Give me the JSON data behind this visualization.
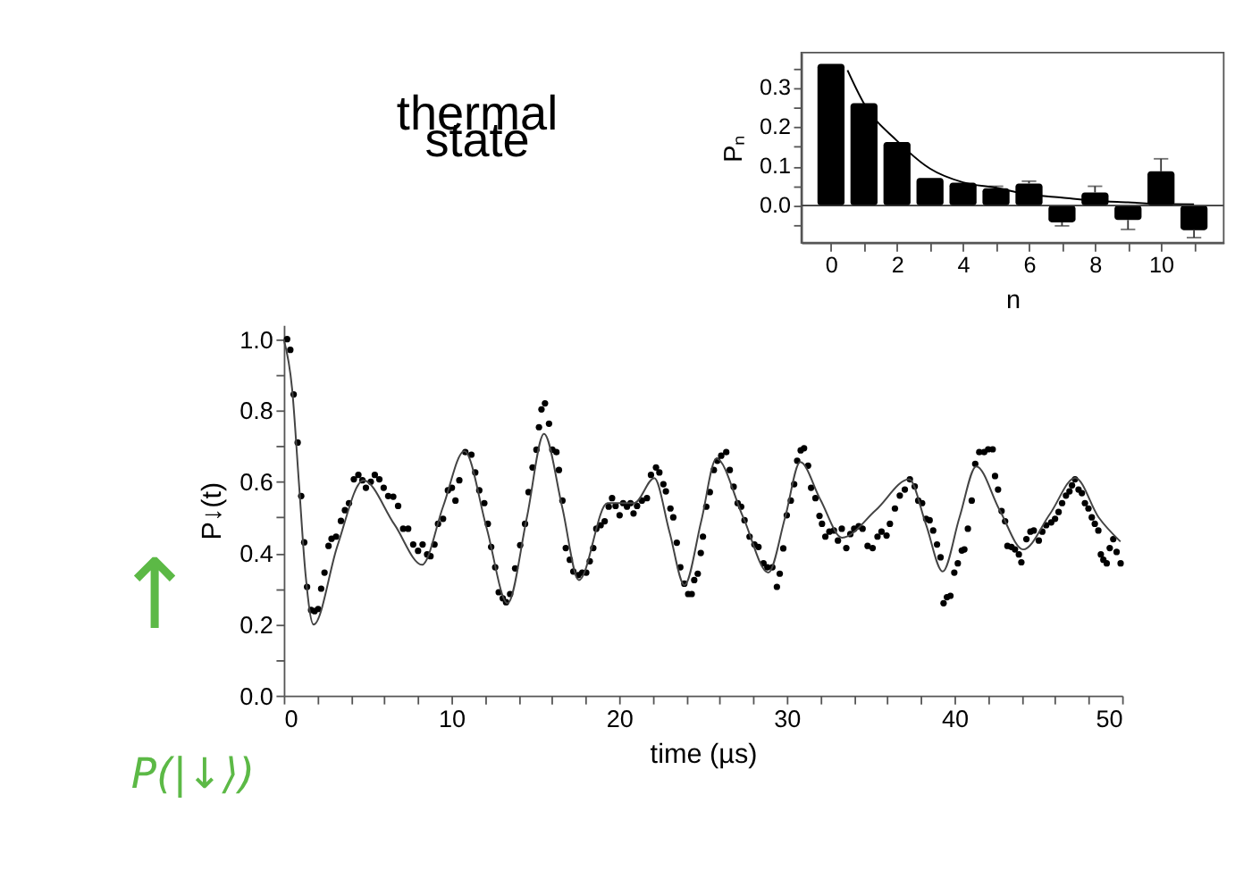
{
  "chart_data": [
    {
      "type": "bar",
      "title": "thermal state",
      "xlabel": "n",
      "ylabel": "Pₙ",
      "xlim": [
        -0.9,
        11.9
      ],
      "ylim": [
        -0.095,
        0.39
      ],
      "xticks": [
        0,
        {
          "value": 1,
          "label": null
        },
        2,
        {
          "value": 3,
          "label": null
        },
        4,
        {
          "value": 5,
          "label": null
        },
        6,
        {
          "value": 7,
          "label": null
        },
        8,
        {
          "value": 9,
          "label": null
        },
        10,
        {
          "value": 11,
          "label": null
        }
      ],
      "yticks": [
        {
          "value": -0.05,
          "label": null
        },
        {
          "value": 0,
          "label": "0.0"
        },
        {
          "value": 0.05,
          "label": null
        },
        {
          "value": 0.1,
          "label": "0.1"
        },
        {
          "value": 0.15,
          "label": null
        },
        {
          "value": 0.2,
          "label": "0.2"
        },
        {
          "value": 0.25,
          "label": null
        },
        {
          "value": 0.3,
          "label": "0.3"
        },
        {
          "value": 0.35,
          "label": null
        }
      ],
      "ref_lines": [
        {
          "axis": "y",
          "value": 0,
          "color": "#333333"
        }
      ],
      "series": [
        {
          "color": "#000000",
          "x": [
            0,
            1,
            2,
            3,
            4,
            5,
            6,
            7,
            8,
            9,
            10,
            11
          ],
          "values": [
            0.361,
            0.261,
            0.162,
            0.07,
            0.058,
            0.044,
            0.056,
            -0.043,
            0.033,
            -0.037,
            0.087,
            -0.063
          ],
          "errors": [
            null,
            null,
            null,
            null,
            null,
            0.005,
            0.006,
            0.009,
            0.016,
            0.024,
            0.032,
            0.019
          ]
        },
        {
          "type": "line",
          "color": "#000000",
          "x": [
            0.5,
            1,
            2,
            3,
            4,
            5,
            6,
            7,
            8,
            9,
            10,
            11
          ],
          "values": [
            0.345,
            0.26,
            0.165,
            0.094,
            0.059,
            0.045,
            0.028,
            0.02,
            0.012,
            0.008,
            0.004,
            0.003
          ]
        }
      ]
    },
    {
      "type": "scatter",
      "xlabel": "time (µs)",
      "ylabel": "P↓(t)",
      "xlim": [
        0,
        50
      ],
      "ylim": [
        0,
        1.04
      ],
      "xticks": [
        0,
        {
          "value": 2,
          "label": null
        },
        {
          "value": 4,
          "label": null
        },
        {
          "value": 6,
          "label": null
        },
        {
          "value": 8,
          "label": null
        },
        10,
        {
          "value": 12,
          "label": null
        },
        {
          "value": 14,
          "label": null
        },
        {
          "value": 16,
          "label": null
        },
        {
          "value": 18,
          "label": null
        },
        20,
        {
          "value": 22,
          "label": null
        },
        {
          "value": 24,
          "label": null
        },
        {
          "value": 26,
          "label": null
        },
        {
          "value": 28,
          "label": null
        },
        30,
        {
          "value": 32,
          "label": null
        },
        {
          "value": 34,
          "label": null
        },
        {
          "value": 36,
          "label": null
        },
        {
          "value": 38,
          "label": null
        },
        40,
        {
          "value": 42,
          "label": null
        },
        {
          "value": 44,
          "label": null
        },
        {
          "value": 46,
          "label": null
        },
        {
          "value": 48,
          "label": null
        },
        50
      ],
      "yticks": [
        {
          "value": 0,
          "label": "0.0"
        },
        {
          "value": 0.1,
          "label": null
        },
        {
          "value": 0.2,
          "label": "0.2"
        },
        {
          "value": 0.3,
          "label": null
        },
        {
          "value": 0.4,
          "label": "0.4"
        },
        {
          "value": 0.5,
          "label": null
        },
        {
          "value": 0.6,
          "label": "0.6"
        },
        {
          "value": 0.7,
          "label": null
        },
        {
          "value": 0.8,
          "label": "0.8"
        },
        {
          "value": 0.9,
          "label": null
        },
        {
          "value": 1.0,
          "label": "1.0"
        }
      ],
      "annotations": [
        "↑",
        "P(|↓⟩)"
      ],
      "series": [
        {
          "marker": "circle",
          "color": "#000000",
          "x": [
            0.2,
            0.39,
            0.59,
            0.83,
            1.04,
            1.22,
            1.39,
            1.63,
            1.84,
            2.05,
            2.23,
            2.43,
            2.67,
            2.85,
            3.12,
            3.41,
            3.65,
            3.89,
            4.18,
            4.45,
            4.69,
            4.9,
            5.19,
            5.43,
            5.7,
            5.96,
            6.23,
            6.53,
            6.82,
            7.12,
            7.42,
            7.72,
            8.01,
            8.28,
            8.55,
            8.75,
            8.99,
            9.2,
            9.5,
            9.79,
            10.03,
            10.24,
            10.47,
            10.83,
            11.19,
            11.42,
            11.66,
            11.96,
            12.17,
            12.37,
            12.61,
            12.82,
            13.06,
            13.26,
            13.5,
            13.8,
            14.1,
            14.39,
            14.6,
            14.84,
            15.07,
            15.22,
            15.37,
            15.58,
            15.82,
            16.02,
            16.26,
            16.41,
            16.62,
            16.82,
            17.06,
            17.27,
            17.57,
            17.8,
            18.04,
            18.25,
            18.46,
            18.64,
            18.9,
            19.14,
            19.38,
            19.58,
            19.79,
            20.03,
            20.24,
            20.47,
            20.68,
            20.86,
            21.07,
            21.36,
            21.66,
            21.9,
            22.2,
            22.4,
            22.64,
            22.79,
            23.06,
            23.23,
            23.44,
            23.65,
            23.89,
            24.12,
            24.33,
            24.48,
            24.69,
            24.87,
            25.0,
            25.2,
            25.41,
            25.65,
            25.86,
            26.09,
            26.39,
            26.6,
            26.83,
            27.07,
            27.28,
            27.48,
            27.78,
            28.07,
            28.31,
            28.61,
            28.84,
            29.14,
            29.41,
            29.58,
            29.79,
            30.0,
            30.24,
            30.44,
            30.62,
            30.83,
            31.03,
            31.27,
            31.45,
            31.71,
            31.95,
            32.1,
            32.3,
            32.54,
            32.81,
            33.05,
            33.28,
            33.55,
            33.79,
            34.02,
            34.29,
            34.52,
            34.82,
            35.12,
            35.41,
            35.65,
            35.95,
            36.15,
            36.45,
            36.74,
            37.04,
            37.34,
            37.63,
            37.84,
            38.07,
            38.31,
            38.52,
            38.73,
            38.96,
            39.17,
            39.35,
            39.55,
            39.76,
            39.99,
            40.2,
            40.44,
            40.59,
            40.8,
            41.03,
            41.24,
            41.48,
            41.77,
            42.01,
            42.28,
            42.42,
            42.6,
            42.81,
            43.02,
            43.16,
            43.4,
            43.61,
            43.84,
            43.99,
            44.29,
            44.53,
            44.73,
            45.03,
            45.24,
            45.47,
            45.77,
            46.0,
            46.21,
            46.42,
            46.65,
            46.86,
            47.01,
            47.19,
            47.4,
            47.6,
            47.78,
            47.99,
            48.19,
            48.37,
            48.58,
            48.73,
            48.88,
            49.08,
            49.26,
            49.47,
            49.67,
            49.91
          ],
          "values": [
            1.0,
            0.97,
            0.845,
            0.71,
            0.56,
            0.43,
            0.305,
            0.24,
            0.237,
            0.243,
            0.3,
            0.345,
            0.42,
            0.44,
            0.446,
            0.49,
            0.52,
            0.54,
            0.607,
            0.619,
            0.604,
            0.583,
            0.6,
            0.619,
            0.607,
            0.583,
            0.56,
            0.558,
            0.532,
            0.468,
            0.468,
            0.424,
            0.406,
            0.424,
            0.396,
            0.391,
            0.424,
            0.482,
            0.496,
            0.576,
            0.583,
            0.547,
            0.604,
            0.683,
            0.676,
            0.626,
            0.576,
            0.54,
            0.482,
            0.417,
            0.36,
            0.29,
            0.273,
            0.262,
            0.285,
            0.357,
            0.422,
            0.482,
            0.571,
            0.64,
            0.69,
            0.753,
            0.803,
            0.82,
            0.763,
            0.69,
            0.683,
            0.633,
            0.547,
            0.414,
            0.381,
            0.348,
            0.338,
            0.345,
            0.345,
            0.377,
            0.414,
            0.468,
            0.478,
            0.489,
            0.53,
            0.554,
            0.532,
            0.506,
            0.54,
            0.53,
            0.54,
            0.511,
            0.532,
            0.547,
            0.554,
            0.619,
            0.64,
            0.626,
            0.593,
            0.573,
            0.525,
            0.5,
            0.429,
            0.36,
            0.314,
            0.285,
            0.285,
            0.324,
            0.342,
            0.4,
            0.446,
            0.53,
            0.571,
            0.633,
            0.659,
            0.673,
            0.683,
            0.633,
            0.586,
            0.54,
            0.53,
            0.492,
            0.446,
            0.424,
            0.417,
            0.371,
            0.36,
            0.36,
            0.305,
            0.342,
            0.413,
            0.506,
            0.547,
            0.593,
            0.659,
            0.688,
            0.694,
            0.645,
            0.583,
            0.554,
            0.504,
            0.482,
            0.446,
            0.46,
            0.463,
            0.435,
            0.468,
            0.414,
            0.453,
            0.468,
            0.475,
            0.468,
            0.42,
            0.414,
            0.446,
            0.46,
            0.449,
            0.482,
            0.525,
            0.561,
            0.578,
            0.607,
            0.587,
            0.547,
            0.54,
            0.496,
            0.492,
            0.463,
            0.424,
            0.388,
            0.259,
            0.276,
            0.28,
            0.345,
            0.371,
            0.407,
            0.41,
            0.468,
            0.547,
            0.65,
            0.683,
            0.683,
            0.691,
            0.691,
            0.616,
            0.578,
            0.518,
            0.489,
            0.42,
            0.417,
            0.41,
            0.396,
            0.374,
            0.439,
            0.46,
            0.463,
            0.435,
            0.46,
            0.478,
            0.486,
            0.496,
            0.515,
            0.54,
            0.561,
            0.573,
            0.59,
            0.607,
            0.578,
            0.568,
            0.54,
            0.525,
            0.5,
            0.482,
            0.463,
            0.396,
            0.381,
            0.371,
            0.414,
            0.439,
            0.403,
            0.371
          ]
        },
        {
          "type": "line",
          "color": "#444444",
          "x": [
            0,
            0.5,
            0.9,
            1.3,
            1.78,
            3.2,
            4.75,
            6.6,
            8.25,
            9.5,
            10.77,
            12.1,
            13.35,
            14.5,
            15.52,
            16.6,
            17.6,
            19.3,
            20.9,
            22.1,
            23.0,
            23.9,
            24.9,
            25.8,
            27.4,
            28.9,
            29.9,
            30.8,
            32.0,
            33.3,
            35.3,
            37.3,
            38.3,
            39.3,
            40.3,
            41.3,
            42.7,
            44.1,
            45.7,
            47.2,
            48.6,
            49.9
          ],
          "values": [
            1.0,
            0.86,
            0.6,
            0.34,
            0.199,
            0.42,
            0.604,
            0.48,
            0.367,
            0.53,
            0.686,
            0.47,
            0.259,
            0.5,
            0.734,
            0.53,
            0.324,
            0.54,
            0.54,
            0.61,
            0.46,
            0.31,
            0.49,
            0.665,
            0.5,
            0.345,
            0.5,
            0.655,
            0.55,
            0.443,
            0.52,
            0.607,
            0.48,
            0.348,
            0.5,
            0.643,
            0.52,
            0.41,
            0.51,
            0.611,
            0.5,
            0.432
          ]
        }
      ]
    }
  ]
}
